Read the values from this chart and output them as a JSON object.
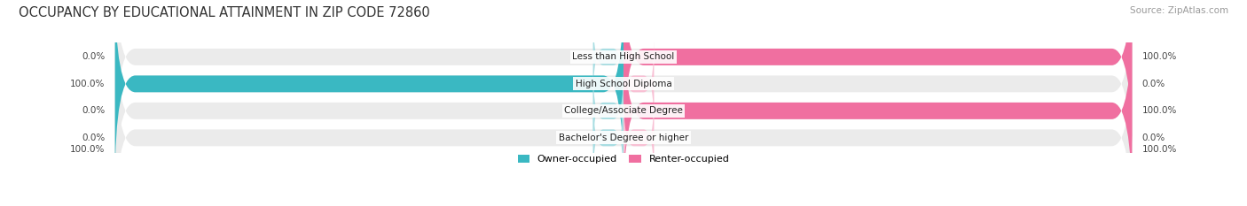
{
  "title": "OCCUPANCY BY EDUCATIONAL ATTAINMENT IN ZIP CODE 72860",
  "source": "Source: ZipAtlas.com",
  "categories": [
    "Less than High School",
    "High School Diploma",
    "College/Associate Degree",
    "Bachelor's Degree or higher"
  ],
  "owner_values": [
    0.0,
    100.0,
    0.0,
    0.0
  ],
  "renter_values": [
    100.0,
    0.0,
    100.0,
    0.0
  ],
  "owner_color": "#3ab8c2",
  "renter_color": "#f06fa0",
  "owner_light_color": "#a8dde2",
  "renter_light_color": "#f8c0d4",
  "bar_bg": "#ebebeb",
  "title_fontsize": 10.5,
  "label_fontsize": 7.5,
  "legend_fontsize": 8,
  "source_fontsize": 7.5,
  "annotation_fontsize": 7.5,
  "bar_height": 0.62,
  "stub_size": 6.0
}
